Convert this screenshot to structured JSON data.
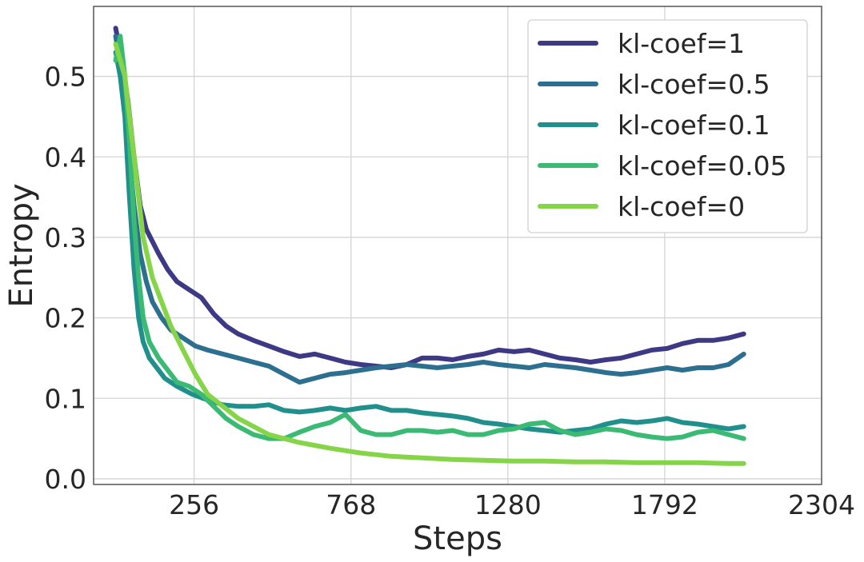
{
  "chart_data": {
    "type": "line",
    "xlabel": "Steps",
    "ylabel": "Entropy",
    "xlim": [
      -72,
      2304
    ],
    "ylim": [
      -0.007,
      0.587
    ],
    "xticks": [
      256,
      768,
      1280,
      1792,
      2304
    ],
    "yticks": [
      0.0,
      0.1,
      0.2,
      0.3,
      0.4,
      0.5
    ],
    "ytick_labels": [
      "0.0",
      "0.1",
      "0.2",
      "0.3",
      "0.4",
      "0.5"
    ],
    "grid": true,
    "legend_position": "top-right",
    "series": [
      {
        "name": "kl-coef=1",
        "color": "#3e3984",
        "x": [
          0,
          20,
          40,
          60,
          80,
          100,
          120,
          140,
          170,
          200,
          240,
          280,
          320,
          360,
          400,
          450,
          500,
          550,
          600,
          650,
          700,
          750,
          800,
          850,
          900,
          950,
          1000,
          1050,
          1100,
          1150,
          1200,
          1250,
          1300,
          1350,
          1400,
          1450,
          1500,
          1550,
          1600,
          1650,
          1700,
          1750,
          1800,
          1850,
          1900,
          1950,
          2000,
          2050
        ],
        "y": [
          0.56,
          0.52,
          0.47,
          0.4,
          0.34,
          0.31,
          0.295,
          0.28,
          0.26,
          0.245,
          0.235,
          0.225,
          0.205,
          0.19,
          0.18,
          0.172,
          0.165,
          0.158,
          0.152,
          0.155,
          0.15,
          0.145,
          0.142,
          0.14,
          0.138,
          0.142,
          0.15,
          0.15,
          0.148,
          0.152,
          0.155,
          0.16,
          0.158,
          0.16,
          0.155,
          0.15,
          0.148,
          0.145,
          0.148,
          0.15,
          0.155,
          0.16,
          0.162,
          0.168,
          0.172,
          0.172,
          0.175,
          0.18
        ]
      },
      {
        "name": "kl-coef=0.5",
        "color": "#2d6f8e",
        "x": [
          0,
          20,
          40,
          60,
          80,
          100,
          120,
          150,
          180,
          220,
          260,
          300,
          350,
          400,
          450,
          500,
          550,
          600,
          650,
          700,
          750,
          800,
          850,
          900,
          950,
          1000,
          1050,
          1100,
          1150,
          1200,
          1250,
          1300,
          1350,
          1400,
          1450,
          1500,
          1550,
          1600,
          1650,
          1700,
          1750,
          1800,
          1850,
          1900,
          1950,
          2000,
          2050
        ],
        "y": [
          0.55,
          0.5,
          0.42,
          0.34,
          0.28,
          0.245,
          0.22,
          0.2,
          0.185,
          0.175,
          0.165,
          0.16,
          0.155,
          0.15,
          0.145,
          0.14,
          0.13,
          0.12,
          0.125,
          0.13,
          0.132,
          0.135,
          0.138,
          0.14,
          0.142,
          0.14,
          0.138,
          0.14,
          0.142,
          0.145,
          0.142,
          0.14,
          0.138,
          0.142,
          0.14,
          0.138,
          0.135,
          0.132,
          0.13,
          0.132,
          0.135,
          0.138,
          0.135,
          0.138,
          0.138,
          0.142,
          0.155
        ]
      },
      {
        "name": "kl-coef=0.1",
        "color": "#21908d",
        "x": [
          0,
          15,
          30,
          45,
          60,
          75,
          90,
          110,
          130,
          160,
          200,
          250,
          300,
          350,
          400,
          450,
          500,
          550,
          600,
          650,
          700,
          750,
          800,
          850,
          900,
          950,
          1000,
          1050,
          1100,
          1150,
          1200,
          1250,
          1300,
          1350,
          1400,
          1450,
          1500,
          1550,
          1600,
          1650,
          1700,
          1750,
          1800,
          1850,
          1900,
          1950,
          2000,
          2050
        ],
        "y": [
          0.53,
          0.5,
          0.45,
          0.35,
          0.26,
          0.2,
          0.17,
          0.15,
          0.14,
          0.125,
          0.115,
          0.105,
          0.098,
          0.092,
          0.09,
          0.09,
          0.092,
          0.085,
          0.083,
          0.085,
          0.088,
          0.085,
          0.088,
          0.09,
          0.085,
          0.085,
          0.082,
          0.08,
          0.078,
          0.075,
          0.07,
          0.068,
          0.065,
          0.062,
          0.06,
          0.058,
          0.06,
          0.062,
          0.068,
          0.072,
          0.07,
          0.072,
          0.075,
          0.07,
          0.068,
          0.065,
          0.062,
          0.065
        ]
      },
      {
        "name": "kl-coef=0.05",
        "color": "#3bba74",
        "x": [
          0,
          15,
          30,
          45,
          60,
          75,
          90,
          110,
          140,
          170,
          200,
          240,
          280,
          320,
          360,
          400,
          450,
          500,
          550,
          600,
          650,
          700,
          750,
          800,
          850,
          900,
          950,
          1000,
          1050,
          1100,
          1150,
          1200,
          1250,
          1300,
          1350,
          1400,
          1450,
          1500,
          1550,
          1600,
          1650,
          1700,
          1750,
          1800,
          1850,
          1900,
          1950,
          2000,
          2050
        ],
        "y": [
          0.52,
          0.55,
          0.5,
          0.42,
          0.32,
          0.25,
          0.2,
          0.17,
          0.15,
          0.135,
          0.12,
          0.115,
          0.105,
          0.09,
          0.075,
          0.065,
          0.055,
          0.05,
          0.05,
          0.058,
          0.065,
          0.07,
          0.08,
          0.06,
          0.055,
          0.055,
          0.06,
          0.06,
          0.058,
          0.06,
          0.055,
          0.055,
          0.06,
          0.062,
          0.068,
          0.07,
          0.06,
          0.055,
          0.058,
          0.062,
          0.06,
          0.055,
          0.052,
          0.05,
          0.052,
          0.058,
          0.06,
          0.055,
          0.05
        ]
      },
      {
        "name": "kl-coef=0",
        "color": "#86d549",
        "x": [
          0,
          30,
          60,
          90,
          120,
          150,
          180,
          220,
          260,
          300,
          350,
          400,
          450,
          500,
          600,
          700,
          800,
          900,
          1000,
          1100,
          1200,
          1300,
          1400,
          1500,
          1600,
          1700,
          1800,
          1900,
          2000,
          2050
        ],
        "y": [
          0.54,
          0.5,
          0.4,
          0.3,
          0.25,
          0.22,
          0.19,
          0.16,
          0.13,
          0.105,
          0.09,
          0.075,
          0.065,
          0.055,
          0.045,
          0.038,
          0.032,
          0.028,
          0.026,
          0.024,
          0.023,
          0.022,
          0.022,
          0.021,
          0.021,
          0.02,
          0.02,
          0.02,
          0.019,
          0.019
        ]
      }
    ]
  }
}
